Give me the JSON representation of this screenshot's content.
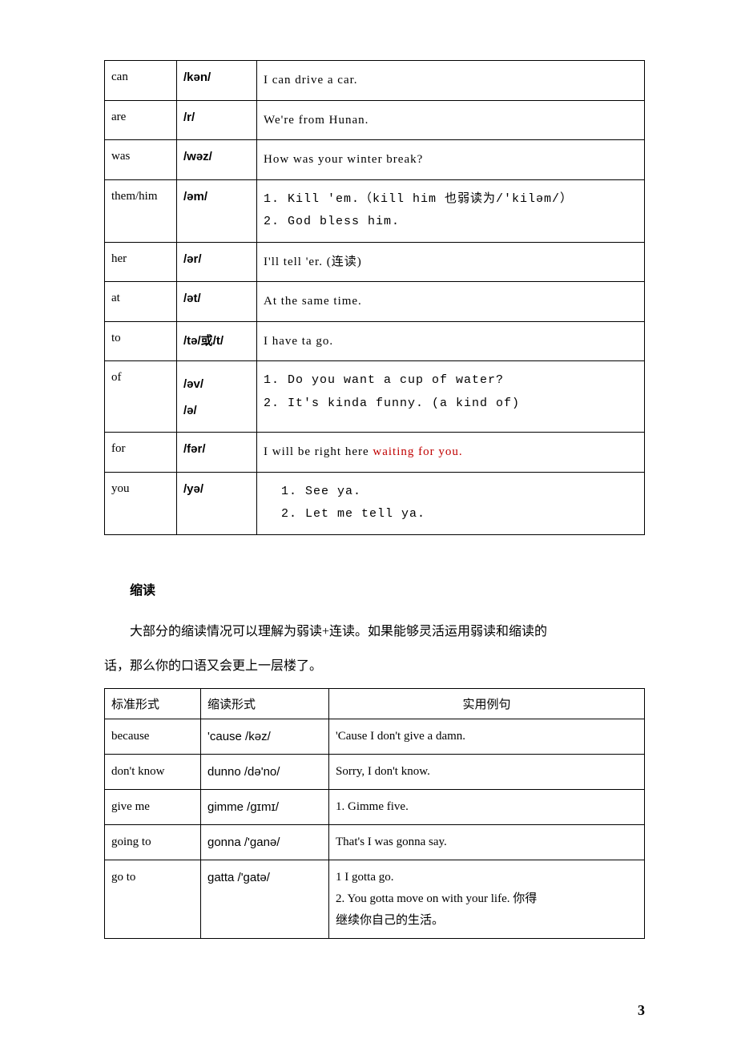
{
  "table1": {
    "rows": [
      {
        "word": "can",
        "phon": "/kən/",
        "example": "I can drive a car."
      },
      {
        "word": "are",
        "phon": "/r/",
        "example": "We're from Hunan."
      },
      {
        "word": "was",
        "phon": "/wəz/",
        "example": "How was your winter break?"
      },
      {
        "word": "them/him",
        "phon": "/əm/",
        "example_lines": [
          "1. Kill 'em.（kill him 也弱读为/'kiləm/）",
          "2. God bless him."
        ]
      },
      {
        "word": "her",
        "phon": "/ər/",
        "example": "I'll tell 'er. (连读)"
      },
      {
        "word": "at",
        "phon": "/ət/",
        "example": "At the same time."
      },
      {
        "word": "to",
        "phon": "/tə/或/t/",
        "example": "I have ta go."
      },
      {
        "word": "of",
        "phon_lines": [
          "/əv/",
          "/ə/"
        ],
        "example_lines": [
          "1. Do you want a cup of water?",
          "2. It's kinda funny. (a kind of)"
        ]
      },
      {
        "word": "for",
        "phon": "/fər/",
        "example_pre": "I will be right here ",
        "example_red": "waiting for you."
      },
      {
        "word": "you",
        "phon": "/yə/",
        "example_lines_indent": [
          "1. See ya.",
          "2. Let me tell ya."
        ]
      }
    ]
  },
  "section": {
    "heading": "缩读",
    "body1": "大部分的缩读情况可以理解为弱读+连读。如果能够灵活运用弱读和缩读的",
    "body2": "话，那么你的口语又会更上一层楼了。"
  },
  "table2": {
    "headers": [
      "标准形式",
      "缩读形式",
      "实用例句"
    ],
    "rows": [
      {
        "std": "because",
        "contract": "'cause /kəz/",
        "example": "'Cause I don't give a damn."
      },
      {
        "std": "don't know",
        "contract": "dunno /də'no/",
        "example": "Sorry, I don't know."
      },
      {
        "std": "give me",
        "contract": "gimme /gɪmɪ/",
        "example": "1. Gimme five."
      },
      {
        "std": "going to",
        "contract": "gonna /'ganə/",
        "example": "That's I was gonna say."
      },
      {
        "std": "go to",
        "contract": "gatta /'gatə/",
        "example_lines": [
          "1 I gotta go.",
          "2. You gotta move on with your life. 你得",
          "继续你自己的生活。"
        ]
      }
    ]
  },
  "page_number": "3"
}
